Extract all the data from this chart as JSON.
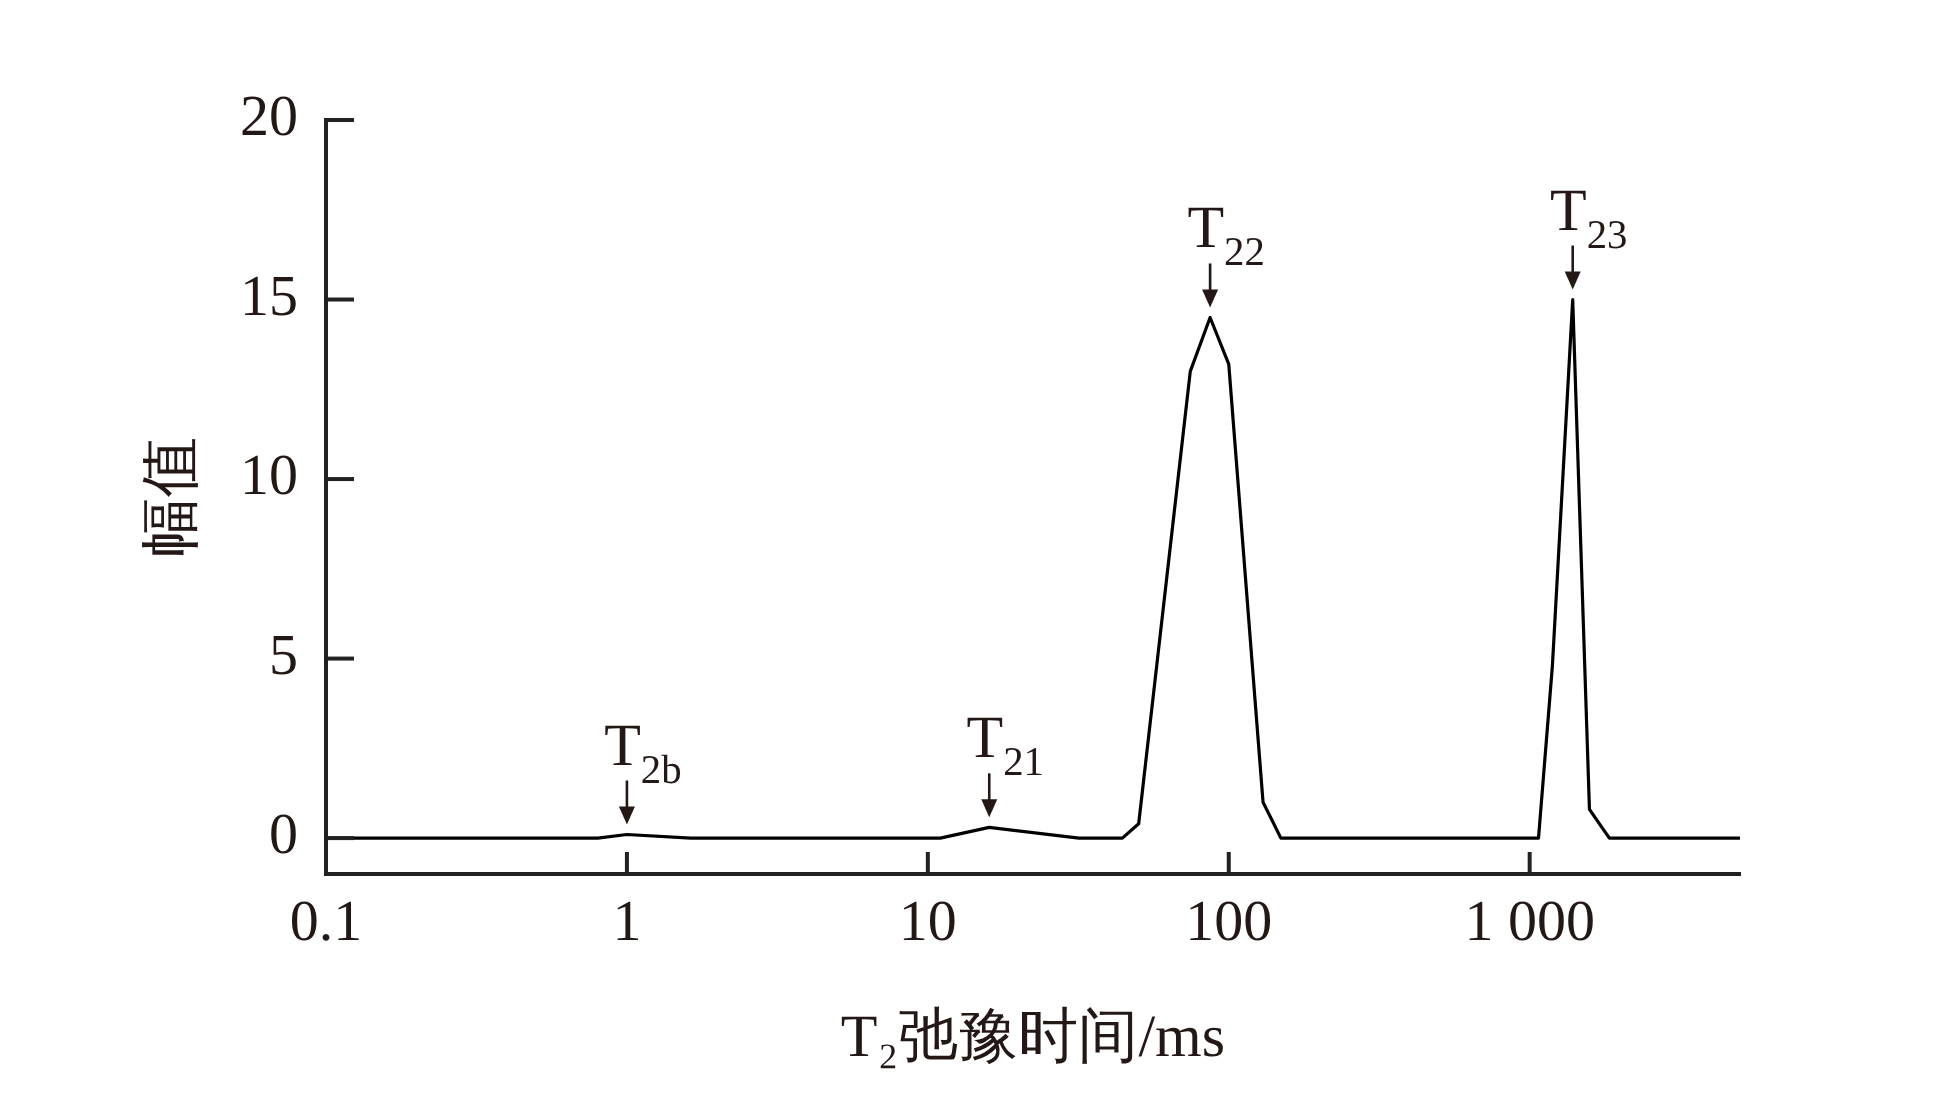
{
  "chart_data": {
    "type": "line",
    "xlabel": "T₂弛豫时间/ms",
    "ylabel": "幅值",
    "x": [
      0.1,
      0.8,
      1,
      1.63,
      11,
      16,
      31.8,
      44.3,
      50.2,
      74.5,
      86.7,
      100,
      130,
      149,
      1070,
      1190,
      1390,
      1580,
      1840,
      5000
    ],
    "series": [
      {
        "color": "#000000",
        "values": [
          0,
          0,
          0.1,
          0,
          0,
          0.3,
          0,
          0,
          0.4,
          13.0,
          14.5,
          13.2,
          1.0,
          0,
          0,
          4.8,
          15.0,
          0.8,
          0,
          0
        ]
      }
    ],
    "log": "x",
    "xlim": [
      0.1,
      5000
    ],
    "xticks": [
      0.1,
      1,
      10,
      100,
      {
        "value": 1000,
        "label": "1 000"
      }
    ],
    "ylim": [
      -1,
      20
    ],
    "yticks": [
      0,
      5,
      10,
      15,
      20
    ],
    "grid": false,
    "legend": false,
    "marker": "none",
    "line_style": "solid",
    "annotations": [
      {
        "text": "T$_{2b}$",
        "x": 1,
        "y": 0.1
      },
      {
        "text": "T$_{21}$",
        "x": 16,
        "y": 0.3
      },
      {
        "text": "T$_{22}$",
        "x": 86.7,
        "y": 14.5
      },
      {
        "text": "T$_{23}$",
        "x": 1390,
        "y": 15.0
      }
    ]
  }
}
